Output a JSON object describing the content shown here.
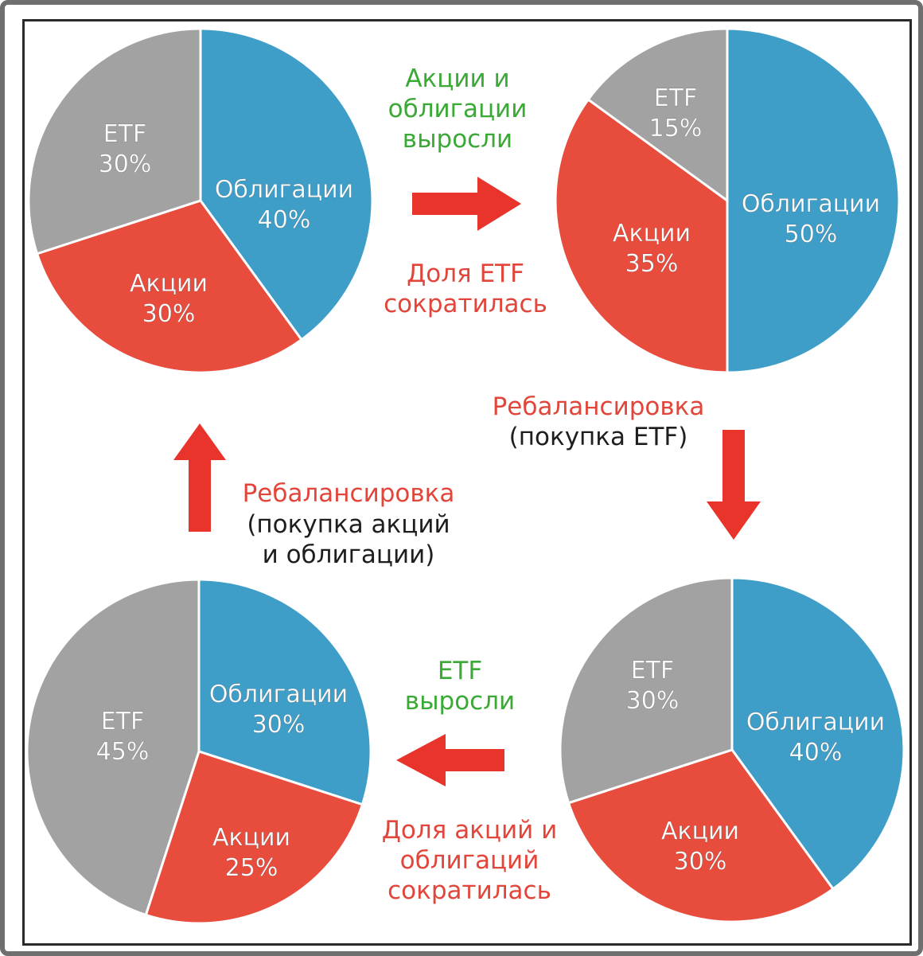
{
  "colors": {
    "bonds": "#3f9ec8",
    "stocks": "#e84c3d",
    "etf": "#a2a2a2",
    "arrow": "#e8342a"
  },
  "chart_data": [
    {
      "type": "pie",
      "id": "top-left",
      "slices": [
        {
          "name": "Облигации",
          "value": 40,
          "label": "Облигации",
          "percent": "40%"
        },
        {
          "name": "Акции",
          "value": 30,
          "label": "Акции",
          "percent": "30%"
        },
        {
          "name": "ETF",
          "value": 30,
          "label": "ETF",
          "percent": "30%"
        }
      ]
    },
    {
      "type": "pie",
      "id": "top-right",
      "slices": [
        {
          "name": "Облигации",
          "value": 50,
          "label": "Облигации",
          "percent": "50%"
        },
        {
          "name": "Акции",
          "value": 35,
          "label": "Акции",
          "percent": "35%"
        },
        {
          "name": "ETF",
          "value": 15,
          "label": "ETF",
          "percent": "15%"
        }
      ]
    },
    {
      "type": "pie",
      "id": "bottom-right",
      "slices": [
        {
          "name": "Облигации",
          "value": 40,
          "label": "Облигации",
          "percent": "40%"
        },
        {
          "name": "Акции",
          "value": 30,
          "label": "Акции",
          "percent": "30%"
        },
        {
          "name": "ETF",
          "value": 30,
          "label": "ETF",
          "percent": "30%"
        }
      ]
    },
    {
      "type": "pie",
      "id": "bottom-left",
      "slices": [
        {
          "name": "Облигации",
          "value": 30,
          "label": "Облигации",
          "percent": "30%"
        },
        {
          "name": "Акции",
          "value": 25,
          "label": "Акции",
          "percent": "25%"
        },
        {
          "name": "ETF",
          "value": 45,
          "label": "ETF",
          "percent": "45%"
        }
      ]
    }
  ],
  "captions": {
    "top_growth": "Акции и\nоблигации\nвыросли",
    "top_shrink": "Доля ETF\nсократилась",
    "right_rebalance_title": "Ребалансировка",
    "right_rebalance_note": "(покупка ETF)",
    "bottom_growth": "ETF\nвыросли",
    "bottom_shrink": "Доля акций и\nоблигаций\nсократилась",
    "left_rebalance_title": "Ребалансировка",
    "left_rebalance_note": "(покупка акций\nи облигации)"
  }
}
